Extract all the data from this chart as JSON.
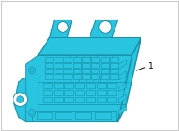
{
  "bg_color": "#ffffff",
  "border_color": "#cccccc",
  "fill_color": "#29c4e0",
  "edge_color": "#1a90a8",
  "dark_edge": "#0d6070",
  "label_text": "1",
  "figsize": [
    2.0,
    1.47
  ],
  "dpi": 100
}
